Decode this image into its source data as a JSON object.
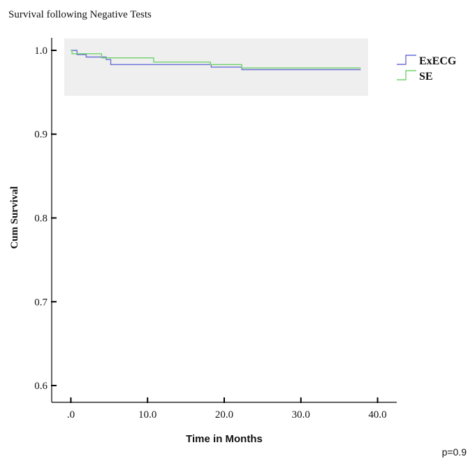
{
  "chart_data": {
    "type": "line",
    "title": "Survival following Negative Tests",
    "xlabel": "Time in Months",
    "ylabel": "Cum Survival",
    "xlim": [
      -2.5,
      42.5
    ],
    "ylim": [
      0.58,
      1.015
    ],
    "x_ticks": [
      0,
      10,
      20,
      30,
      40
    ],
    "x_tick_labels": [
      ".0",
      "10.0",
      "20.0",
      "30.0",
      "40.0"
    ],
    "y_ticks": [
      0.6,
      0.7,
      0.8,
      0.9,
      1.0
    ],
    "y_tick_labels": [
      "0.6",
      "0.7",
      "0.8",
      "0.9",
      "1.0"
    ],
    "grid": false,
    "legend_position": "right",
    "step": true,
    "inset_background": "#efefef",
    "series": [
      {
        "name": "ExECG",
        "color": "#6b6fd6",
        "points": [
          [
            0,
            1.0
          ],
          [
            0.8,
            1.0
          ],
          [
            0.8,
            0.995
          ],
          [
            2.0,
            0.995
          ],
          [
            2.0,
            0.992
          ],
          [
            4.6,
            0.992
          ],
          [
            4.6,
            0.989
          ],
          [
            5.2,
            0.989
          ],
          [
            5.2,
            0.983
          ],
          [
            18.3,
            0.983
          ],
          [
            18.3,
            0.98
          ],
          [
            22.3,
            0.98
          ],
          [
            22.3,
            0.977
          ],
          [
            37.8,
            0.977
          ]
        ]
      },
      {
        "name": "SE",
        "color": "#6fd36a",
        "points": [
          [
            0,
            1.0
          ],
          [
            0.15,
            1.0
          ],
          [
            0.15,
            0.996
          ],
          [
            4.0,
            0.996
          ],
          [
            4.0,
            0.991
          ],
          [
            10.8,
            0.991
          ],
          [
            10.8,
            0.986
          ],
          [
            18.2,
            0.986
          ],
          [
            18.2,
            0.983
          ],
          [
            22.3,
            0.983
          ],
          [
            22.3,
            0.979
          ],
          [
            37.8,
            0.979
          ]
        ]
      }
    ],
    "annotation": "p=0.9"
  }
}
